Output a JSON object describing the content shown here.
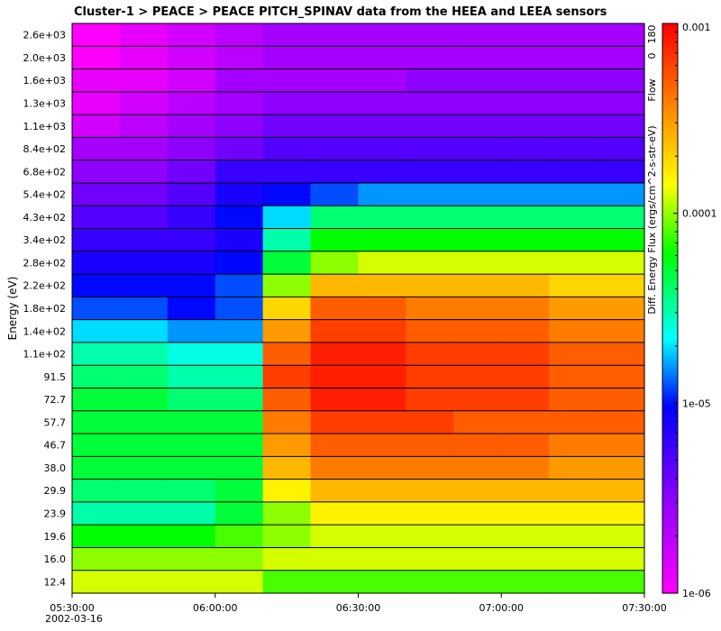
{
  "chart_data": {
    "type": "heatmap",
    "title": "Cluster-1 > PEACE > PEACE PITCH_SPINAV data from the HEEA and LEEA sensors",
    "ylabel": "Energy (eV)",
    "colorbar_label": "Diff. Energy Flux (ergs/cm^2-s-str-eV)",
    "colorbar_ticks": [
      "0.001",
      "0.0001",
      "1e-05",
      "1e-06"
    ],
    "colorbar_scale": "log",
    "colorbar_range": [
      1e-06,
      0.001
    ],
    "flow_label": "Flow",
    "flow_ticks": [
      "0",
      "180"
    ],
    "x_ticks": [
      "05:30:00",
      "06:00:00",
      "06:30:00",
      "07:00:00",
      "07:30:00"
    ],
    "x_date": "2002-03-16",
    "x_range": [
      "05:30:00",
      "07:30:00"
    ],
    "energy_labels": [
      "2.6e+03",
      "2.0e+03",
      "1.6e+03",
      "1.3e+03",
      "1.1e+03",
      "8.4e+02",
      "6.8e+02",
      "5.4e+02",
      "4.3e+02",
      "3.4e+02",
      "2.8e+02",
      "2.2e+02",
      "1.8e+02",
      "1.4e+02",
      "1.1e+02",
      "91.5",
      "72.7",
      "57.7",
      "46.7",
      "38.0",
      "29.9",
      "23.9",
      "19.6",
      "16.0",
      "12.4"
    ],
    "approx_log10_flux_by_band": [
      [
        -6.0,
        -5.9,
        -5.8,
        -5.7,
        -5.6,
        -5.6,
        -5.6,
        -5.6,
        -5.6,
        -5.6,
        -5.6,
        -5.6
      ],
      [
        -6.0,
        -5.9,
        -5.8,
        -5.7,
        -5.6,
        -5.6,
        -5.6,
        -5.6,
        -5.6,
        -5.6,
        -5.6,
        -5.6
      ],
      [
        -5.9,
        -5.9,
        -5.8,
        -5.6,
        -5.6,
        -5.6,
        -5.6,
        -5.5,
        -5.5,
        -5.5,
        -5.5,
        -5.5
      ],
      [
        -5.9,
        -5.8,
        -5.7,
        -5.6,
        -5.5,
        -5.5,
        -5.5,
        -5.5,
        -5.5,
        -5.5,
        -5.5,
        -5.5
      ],
      [
        -5.8,
        -5.7,
        -5.6,
        -5.5,
        -5.4,
        -5.4,
        -5.4,
        -5.4,
        -5.4,
        -5.4,
        -5.4,
        -5.4
      ],
      [
        -5.6,
        -5.6,
        -5.5,
        -5.4,
        -5.3,
        -5.3,
        -5.3,
        -5.3,
        -5.3,
        -5.3,
        -5.3,
        -5.3
      ],
      [
        -5.5,
        -5.5,
        -5.4,
        -5.2,
        -5.2,
        -5.2,
        -5.2,
        -5.2,
        -5.2,
        -5.2,
        -5.2,
        -5.2
      ],
      [
        -5.4,
        -5.4,
        -5.3,
        -5.1,
        -5.0,
        -4.9,
        -4.8,
        -4.8,
        -4.8,
        -4.8,
        -4.8,
        -4.8
      ],
      [
        -5.3,
        -5.3,
        -5.2,
        -5.0,
        -4.7,
        -4.4,
        -4.4,
        -4.4,
        -4.4,
        -4.4,
        -4.4,
        -4.4
      ],
      [
        -5.2,
        -5.2,
        -5.2,
        -5.1,
        -4.5,
        -4.2,
        -4.2,
        -4.2,
        -4.2,
        -4.2,
        -4.2,
        -4.2
      ],
      [
        -5.1,
        -5.1,
        -5.1,
        -5.0,
        -4.3,
        -4.0,
        -3.9,
        -3.9,
        -3.9,
        -3.9,
        -3.9,
        -3.9
      ],
      [
        -5.0,
        -5.0,
        -5.0,
        -4.9,
        -4.0,
        -3.6,
        -3.6,
        -3.6,
        -3.6,
        -3.6,
        -3.7,
        -3.7
      ],
      [
        -4.9,
        -4.9,
        -5.0,
        -4.9,
        -3.7,
        -3.3,
        -3.3,
        -3.4,
        -3.4,
        -3.4,
        -3.5,
        -3.5
      ],
      [
        -4.7,
        -4.7,
        -4.8,
        -4.8,
        -3.5,
        -3.2,
        -3.2,
        -3.3,
        -3.3,
        -3.3,
        -3.4,
        -3.4
      ],
      [
        -4.5,
        -4.5,
        -4.6,
        -4.6,
        -3.3,
        -3.1,
        -3.1,
        -3.2,
        -3.2,
        -3.2,
        -3.3,
        -3.3
      ],
      [
        -4.4,
        -4.4,
        -4.5,
        -4.5,
        -3.2,
        -3.1,
        -3.1,
        -3.2,
        -3.2,
        -3.2,
        -3.3,
        -3.3
      ],
      [
        -4.3,
        -4.3,
        -4.4,
        -4.4,
        -3.3,
        -3.1,
        -3.1,
        -3.2,
        -3.2,
        -3.2,
        -3.3,
        -3.3
      ],
      [
        -4.3,
        -4.3,
        -4.3,
        -4.3,
        -3.4,
        -3.2,
        -3.2,
        -3.2,
        -3.3,
        -3.3,
        -3.3,
        -3.3
      ],
      [
        -4.3,
        -4.3,
        -4.3,
        -4.3,
        -3.5,
        -3.3,
        -3.3,
        -3.3,
        -3.3,
        -3.3,
        -3.4,
        -3.4
      ],
      [
        -4.3,
        -4.3,
        -4.3,
        -4.3,
        -3.6,
        -3.4,
        -3.4,
        -3.4,
        -3.4,
        -3.4,
        -3.5,
        -3.5
      ],
      [
        -4.4,
        -4.4,
        -4.4,
        -4.3,
        -3.8,
        -3.6,
        -3.6,
        -3.6,
        -3.6,
        -3.6,
        -3.6,
        -3.6
      ],
      [
        -4.5,
        -4.5,
        -4.5,
        -4.3,
        -4.0,
        -3.8,
        -3.8,
        -3.8,
        -3.8,
        -3.8,
        -3.8,
        -3.8
      ],
      [
        -4.2,
        -4.2,
        -4.2,
        -4.1,
        -4.0,
        -3.9,
        -3.9,
        -3.9,
        -3.9,
        -3.9,
        -3.9,
        -3.9
      ],
      [
        -4.0,
        -4.0,
        -4.0,
        -4.0,
        -3.9,
        -3.9,
        -3.9,
        -3.9,
        -3.9,
        -3.9,
        -3.9,
        -3.9
      ],
      [
        -3.9,
        -3.9,
        -3.9,
        -3.9,
        -4.1,
        -4.1,
        -4.1,
        -4.1,
        -4.1,
        -4.1,
        -4.1,
        -4.1
      ]
    ]
  }
}
